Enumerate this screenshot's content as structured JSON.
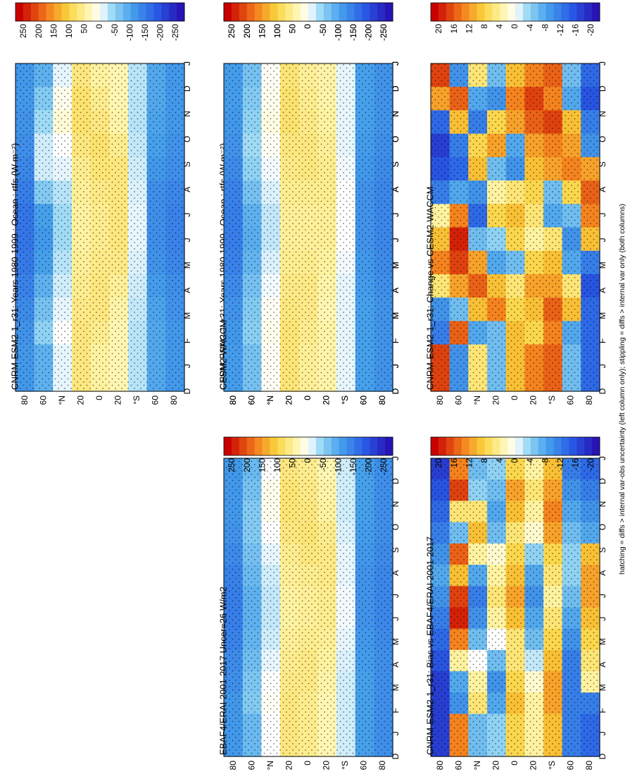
{
  "figure": {
    "footnote": "hatching = diffs > internal var-obs uncertainty (left column only); stippling = diffs > internal var only (both columns)"
  },
  "chart_data": [
    {
      "id": "top-left",
      "type": "heatmap",
      "title": "CNRM-ESM2-1_r31: Years 1980-1999 : Ocean : rtfs (W m⁻²)",
      "x_tick_labels": [
        "D",
        "J",
        "F",
        "M",
        "A",
        "M",
        "J",
        "J",
        "A",
        "S",
        "O",
        "N",
        "D",
        "J"
      ],
      "y_tick_labels": [
        "80",
        "60",
        "°N",
        "20",
        "0",
        "20",
        "°S",
        "60",
        "80"
      ],
      "colorbar_ticks": [
        "250",
        "200",
        "150",
        "100",
        "50",
        "0",
        "-50",
        "-100",
        "-150",
        "-200",
        "-250"
      ],
      "colorbar_range": [
        -275,
        275
      ],
      "latitudes": [
        80,
        60,
        40,
        20,
        0,
        -20,
        -40,
        -60,
        -80
      ],
      "month_columns": [
        "D",
        "J",
        "F",
        "M",
        "A",
        "M",
        "J",
        "J",
        "A",
        "S",
        "O",
        "N",
        "D",
        "J"
      ],
      "values": [
        [
          -120,
          -120,
          -125,
          -130,
          -140,
          -150,
          -160,
          -160,
          -155,
          -145,
          -135,
          -125,
          -120,
          -120
        ],
        [
          -90,
          -60,
          -40,
          -20,
          -20,
          -60,
          -110,
          -120,
          -110,
          -90,
          -70,
          -50,
          -90,
          -90
        ],
        [
          -10,
          10,
          20,
          0,
          -10,
          -30,
          -40,
          -40,
          -30,
          -20,
          -10,
          0,
          -10,
          -10
        ],
        [
          70,
          80,
          80,
          70,
          60,
          55,
          50,
          50,
          55,
          60,
          65,
          70,
          70,
          70
        ],
        [
          50,
          60,
          70,
          80,
          75,
          65,
          60,
          60,
          65,
          70,
          70,
          60,
          50,
          50
        ],
        [
          40,
          40,
          45,
          60,
          70,
          70,
          70,
          70,
          65,
          55,
          45,
          40,
          40,
          40
        ],
        [
          -30,
          -30,
          -30,
          -25,
          -20,
          -15,
          -10,
          -10,
          -15,
          -20,
          -25,
          -30,
          -30,
          -30
        ],
        [
          -100,
          -100,
          -105,
          -110,
          -120,
          -130,
          -130,
          -130,
          -125,
          -115,
          -105,
          -100,
          -100,
          -100
        ],
        [
          -120,
          -120,
          -120,
          -125,
          -130,
          -140,
          -145,
          -145,
          -140,
          -130,
          -125,
          -120,
          -120,
          -120
        ]
      ]
    },
    {
      "id": "middle-left",
      "type": "heatmap",
      "title": "EBAF4/ERAI 2001-2017 Uncer=26 W/m2",
      "x_tick_labels": [
        "D",
        "J",
        "F",
        "M",
        "A",
        "M",
        "J",
        "J",
        "A",
        "S",
        "O",
        "N",
        "D",
        "J"
      ],
      "y_tick_labels": [
        "80",
        "60",
        "°N",
        "20",
        "0",
        "20",
        "°S",
        "60",
        "80"
      ],
      "colorbar_ticks": [
        "250",
        "200",
        "150",
        "100",
        "50",
        "0",
        "-50",
        "-100",
        "-150",
        "-200",
        "-250"
      ],
      "colorbar_range": [
        -275,
        275
      ],
      "latitudes": [
        80,
        60,
        40,
        20,
        0,
        -20,
        -40,
        -60,
        -80
      ],
      "month_columns": [
        "D",
        "J",
        "F",
        "M",
        "A",
        "M",
        "J",
        "J",
        "A",
        "S",
        "O",
        "N",
        "D",
        "J"
      ],
      "values": [
        [
          -120,
          -120,
          -120,
          -125,
          -135,
          -145,
          -150,
          -150,
          -145,
          -135,
          -130,
          -120,
          -120,
          -120
        ],
        [
          -80,
          -70,
          -60,
          -60,
          -70,
          -80,
          -90,
          -90,
          -85,
          -75,
          -65,
          -60,
          -80,
          -80
        ],
        [
          0,
          10,
          10,
          0,
          -10,
          -20,
          -25,
          -25,
          -20,
          -10,
          0,
          5,
          0,
          0
        ],
        [
          70,
          75,
          75,
          70,
          60,
          55,
          50,
          50,
          55,
          60,
          65,
          70,
          70,
          70
        ],
        [
          60,
          65,
          70,
          75,
          70,
          60,
          55,
          55,
          60,
          65,
          65,
          60,
          60,
          60
        ],
        [
          40,
          45,
          50,
          60,
          65,
          65,
          60,
          60,
          55,
          50,
          45,
          40,
          40,
          40
        ],
        [
          -20,
          -20,
          -20,
          -15,
          -10,
          -10,
          -5,
          -5,
          -10,
          -15,
          -20,
          -20,
          -20,
          -20
        ],
        [
          -110,
          -110,
          -110,
          -115,
          -120,
          -125,
          -125,
          -125,
          -120,
          -115,
          -110,
          -110,
          -110,
          -110
        ],
        [
          -130,
          -130,
          -130,
          -130,
          -135,
          -140,
          -140,
          -140,
          -135,
          -130,
          -130,
          -130,
          -130,
          -130
        ]
      ]
    },
    {
      "id": "bottom-left",
      "type": "heatmap",
      "title": "CNRM-ESM2-1_r31: Bias vs EBAF4/ERAI 2001-2017",
      "x_tick_labels": [
        "D",
        "J",
        "F",
        "M",
        "A",
        "M",
        "J",
        "J",
        "A",
        "S",
        "O",
        "N",
        "D",
        "J"
      ],
      "y_tick_labels": [
        "80",
        "60",
        "°N",
        "20",
        "0",
        "20",
        "°S",
        "60",
        "80"
      ],
      "colorbar_ticks": [
        "20",
        "16",
        "12",
        "8",
        "4",
        "0",
        "-4",
        "-8",
        "-12",
        "-16",
        "-20"
      ],
      "colorbar_range": [
        -22,
        22
      ],
      "latitudes": [
        80,
        60,
        40,
        20,
        0,
        -20,
        -40,
        -60,
        -80
      ],
      "month_columns": [
        "D",
        "J",
        "F",
        "M",
        "A",
        "M",
        "J",
        "J",
        "A",
        "S",
        "O",
        "N",
        "D",
        "J"
      ],
      "values": [
        [
          -18,
          -16,
          -14,
          -12,
          -10,
          -8,
          -10,
          -12,
          -14,
          -16,
          -18,
          -18,
          -18,
          -18
        ],
        [
          14,
          18,
          6,
          -6,
          16,
          10,
          18,
          20,
          14,
          4,
          -8,
          -10,
          14,
          14
        ],
        [
          -6,
          -4,
          6,
          10,
          4,
          -8,
          -12,
          -10,
          -6,
          0,
          4,
          6,
          -6,
          -6
        ],
        [
          -4,
          -6,
          -8,
          -6,
          2,
          4,
          6,
          4,
          0,
          -6,
          -10,
          -8,
          -4,
          -4
        ],
        [
          8,
          12,
          10,
          6,
          8,
          10,
          12,
          10,
          6,
          6,
          8,
          10,
          8,
          8
        ],
        [
          4,
          6,
          4,
          2,
          -4,
          -8,
          -10,
          -8,
          -6,
          -2,
          2,
          4,
          4,
          4
        ],
        [
          10,
          12,
          14,
          12,
          8,
          6,
          4,
          6,
          8,
          10,
          12,
          12,
          10,
          10
        ],
        [
          -12,
          -10,
          -8,
          -6,
          -4,
          -4,
          -6,
          -8,
          -10,
          -12,
          -12,
          -12,
          -12,
          -12
        ],
        [
          -14,
          -12,
          -10,
          -8,
          10,
          12,
          12,
          10,
          8,
          6,
          4,
          -12,
          -14,
          -14
        ]
      ]
    },
    {
      "id": "top-right",
      "type": "heatmap",
      "title": "CNRM-ESM2-1_r31: Years 1980-1999 : Ocean : rtfs (W m⁻²)",
      "x_tick_labels": [
        "D",
        "J",
        "F",
        "M",
        "A",
        "M",
        "J",
        "J",
        "A",
        "S",
        "O",
        "N",
        "D",
        "J"
      ],
      "y_tick_labels": [
        "80",
        "60",
        "°N",
        "20",
        "0",
        "20",
        "°S",
        "60",
        "80"
      ],
      "colorbar_ticks": [
        "250",
        "200",
        "150",
        "100",
        "50",
        "0",
        "-50",
        "-100",
        "-150",
        "-200",
        "-250"
      ],
      "colorbar_range": [
        -275,
        275
      ],
      "latitudes": [
        80,
        60,
        40,
        20,
        0,
        -20,
        -40,
        -60,
        -80
      ],
      "month_columns": [
        "D",
        "J",
        "F",
        "M",
        "A",
        "M",
        "J",
        "J",
        "A",
        "S",
        "O",
        "N",
        "D",
        "J"
      ],
      "values": [
        [
          -120,
          -120,
          -125,
          -130,
          -140,
          -150,
          -160,
          -160,
          -155,
          -145,
          -135,
          -125,
          -120,
          -120
        ],
        [
          -90,
          -60,
          -40,
          -20,
          -20,
          -60,
          -110,
          -120,
          -110,
          -90,
          -70,
          -50,
          -90,
          -90
        ],
        [
          -10,
          10,
          20,
          0,
          -10,
          -30,
          -40,
          -40,
          -30,
          -20,
          -10,
          0,
          -10,
          -10
        ],
        [
          70,
          80,
          80,
          70,
          60,
          55,
          50,
          50,
          55,
          60,
          65,
          70,
          70,
          70
        ],
        [
          50,
          60,
          70,
          80,
          75,
          65,
          60,
          60,
          65,
          70,
          70,
          60,
          50,
          50
        ],
        [
          40,
          40,
          45,
          60,
          70,
          70,
          70,
          70,
          65,
          55,
          45,
          40,
          40,
          40
        ],
        [
          -30,
          -30,
          -30,
          -25,
          -20,
          -15,
          -10,
          -10,
          -15,
          -20,
          -25,
          -30,
          -30,
          -30
        ],
        [
          -100,
          -100,
          -105,
          -110,
          -120,
          -130,
          -130,
          -130,
          -125,
          -115,
          -105,
          -100,
          -100,
          -100
        ],
        [
          -120,
          -120,
          -120,
          -125,
          -130,
          -140,
          -145,
          -145,
          -140,
          -130,
          -125,
          -120,
          -120,
          -120
        ]
      ]
    },
    {
      "id": "middle-right",
      "type": "heatmap",
      "title": "CESM2-WACCM",
      "x_tick_labels": [
        "D",
        "J",
        "F",
        "M",
        "A",
        "M",
        "J",
        "J",
        "A",
        "S",
        "O",
        "N",
        "D",
        "J"
      ],
      "y_tick_labels": [
        "80",
        "60",
        "°N",
        "20",
        "0",
        "20",
        "°S",
        "60",
        "80"
      ],
      "colorbar_ticks": [
        "250",
        "200",
        "150",
        "100",
        "50",
        "0",
        "-50",
        "-100",
        "-150",
        "-200",
        "-250"
      ],
      "colorbar_range": [
        -275,
        275
      ],
      "latitudes": [
        80,
        60,
        40,
        20,
        0,
        -20,
        -40,
        -60,
        -80
      ],
      "month_columns": [
        "D",
        "J",
        "F",
        "M",
        "A",
        "M",
        "J",
        "J",
        "A",
        "S",
        "O",
        "N",
        "D",
        "J"
      ],
      "values": [
        [
          -115,
          -115,
          -120,
          -125,
          -135,
          -145,
          -150,
          -150,
          -145,
          -135,
          -125,
          -120,
          -115,
          -115
        ],
        [
          -70,
          -60,
          -50,
          -40,
          -50,
          -70,
          -90,
          -95,
          -85,
          -70,
          -60,
          -55,
          -70,
          -70
        ],
        [
          5,
          10,
          15,
          5,
          -5,
          -15,
          -25,
          -25,
          -15,
          -5,
          5,
          10,
          5,
          5
        ],
        [
          75,
          80,
          80,
          70,
          65,
          60,
          55,
          55,
          60,
          65,
          70,
          75,
          75,
          75
        ],
        [
          55,
          60,
          65,
          70,
          70,
          60,
          55,
          55,
          60,
          65,
          65,
          60,
          55,
          55
        ],
        [
          45,
          45,
          50,
          55,
          60,
          60,
          55,
          55,
          50,
          45,
          40,
          45,
          45,
          45
        ],
        [
          -10,
          -10,
          -10,
          -10,
          -5,
          0,
          0,
          0,
          -5,
          -10,
          -10,
          -10,
          -10,
          -10
        ],
        [
          -110,
          -110,
          -110,
          -115,
          -120,
          -125,
          -125,
          -125,
          -120,
          -115,
          -110,
          -110,
          -110,
          -110
        ],
        [
          -125,
          -125,
          -125,
          -130,
          -135,
          -140,
          -140,
          -140,
          -135,
          -130,
          -125,
          -125,
          -125,
          -125
        ]
      ]
    },
    {
      "id": "bottom-right",
      "type": "heatmap",
      "title": "CNRM-ESM2-1_r31: Change vs CESM2-WACCM",
      "x_tick_labels": [
        "D",
        "J",
        "F",
        "M",
        "A",
        "M",
        "J",
        "J",
        "A",
        "S",
        "O",
        "N",
        "D",
        "J"
      ],
      "y_tick_labels": [
        "80",
        "60",
        "°N",
        "20",
        "0",
        "20",
        "°S",
        "60",
        "80"
      ],
      "colorbar_ticks": [
        "20",
        "16",
        "12",
        "8",
        "4",
        "0",
        "-4",
        "-8",
        "-12",
        "-16",
        "-20"
      ],
      "colorbar_range": [
        -22,
        22
      ],
      "latitudes": [
        80,
        60,
        40,
        20,
        0,
        -20,
        -40,
        -60,
        -80
      ],
      "month_columns": [
        "D",
        "J",
        "F",
        "M",
        "A",
        "M",
        "J",
        "J",
        "A",
        "S",
        "O",
        "N",
        "D",
        "J"
      ],
      "values": [
        [
          18,
          12,
          -14,
          -18,
          -16,
          -12,
          4,
          10,
          14,
          6,
          -10,
          -12,
          18,
          18
        ],
        [
          -10,
          16,
          10,
          -12,
          -14,
          -8,
          14,
          20,
          18,
          12,
          -6,
          16,
          -10,
          -10
        ],
        [
          6,
          -8,
          -12,
          8,
          10,
          -10,
          -14,
          -6,
          12,
          16,
          10,
          -8,
          6,
          6
        ],
        [
          -6,
          -10,
          8,
          12,
          -6,
          4,
          8,
          -4,
          -8,
          10,
          14,
          -6,
          -6,
          -6
        ],
        [
          10,
          14,
          12,
          -8,
          -10,
          6,
          10,
          8,
          -6,
          6,
          8,
          10,
          10,
          10
        ],
        [
          14,
          18,
          16,
          12,
          10,
          8,
          6,
          4,
          8,
          12,
          10,
          8,
          14,
          14
        ],
        [
          16,
          14,
          18,
          14,
          12,
          -6,
          -8,
          6,
          10,
          12,
          16,
          14,
          16,
          16
        ],
        [
          -6,
          -8,
          10,
          12,
          14,
          8,
          -6,
          -10,
          -8,
          6,
          10,
          -8,
          -6,
          -6
        ],
        [
          -14,
          -16,
          -12,
          -10,
          12,
          16,
          14,
          10,
          -12,
          -16,
          -14,
          -14,
          -14,
          -14
        ]
      ]
    }
  ]
}
